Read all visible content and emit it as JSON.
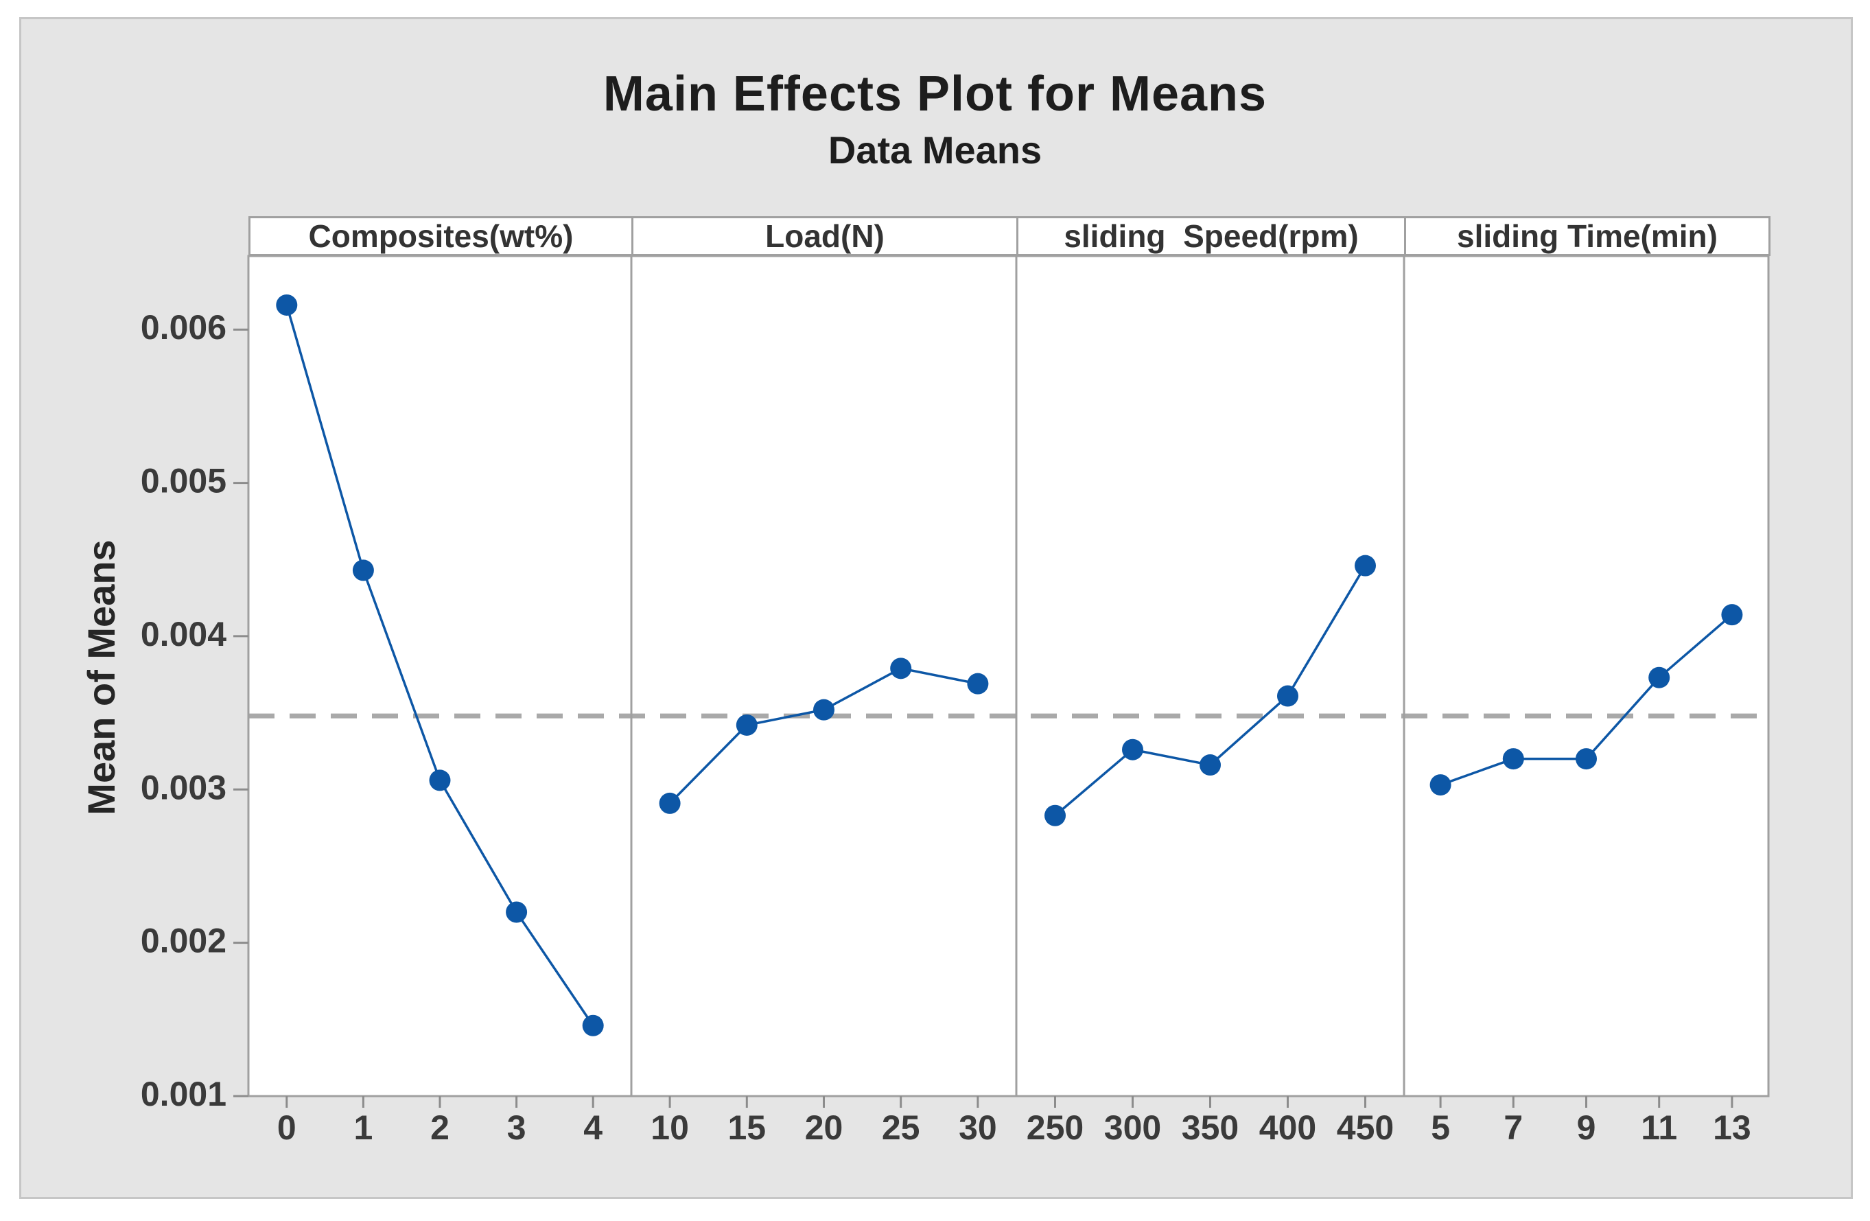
{
  "page": {
    "background": "#ffffff"
  },
  "canvas": {
    "background": "#e5e5e5",
    "border_color": "#c6c6c6"
  },
  "chart_data": {
    "type": "line",
    "title": "Main Effects Plot for Means",
    "subtitle": "Data Means",
    "ylabel": "Mean of Means",
    "ylim": [
      0.001,
      0.00648
    ],
    "y_ticks": [
      0.006,
      0.005,
      0.004,
      0.003,
      0.002,
      0.001
    ],
    "y_tick_labels": [
      "0.006",
      "0.005",
      "0.004",
      "0.003",
      "0.002",
      "0.001"
    ],
    "grid": false,
    "legend": "none",
    "reference_line": {
      "value": 0.00348,
      "style": "dashed",
      "color": "#a9a9a9"
    },
    "series_color": "#0d57a6",
    "frame_color": "#a0a0a0",
    "tick_color": "#8c8c8c",
    "plot_background": "#ffffff",
    "panels": [
      {
        "label": "Composites(wt%)",
        "categories": [
          "0",
          "1",
          "2",
          "3",
          "4"
        ],
        "values": [
          0.00616,
          0.00443,
          0.00306,
          0.0022,
          0.00146
        ]
      },
      {
        "label": "Load(N)",
        "categories": [
          "10",
          "15",
          "20",
          "25",
          "30"
        ],
        "values": [
          0.00291,
          0.00342,
          0.00352,
          0.00379,
          0.00369
        ]
      },
      {
        "label": "sliding  Speed(rpm)",
        "categories": [
          "250",
          "300",
          "350",
          "400",
          "450"
        ],
        "values": [
          0.00283,
          0.00326,
          0.00316,
          0.00361,
          0.00446
        ]
      },
      {
        "label": "sliding Time(min)",
        "categories": [
          "5",
          "7",
          "9",
          "11",
          "13"
        ],
        "values": [
          0.00303,
          0.0032,
          0.0032,
          0.00373,
          0.00414
        ]
      }
    ]
  }
}
